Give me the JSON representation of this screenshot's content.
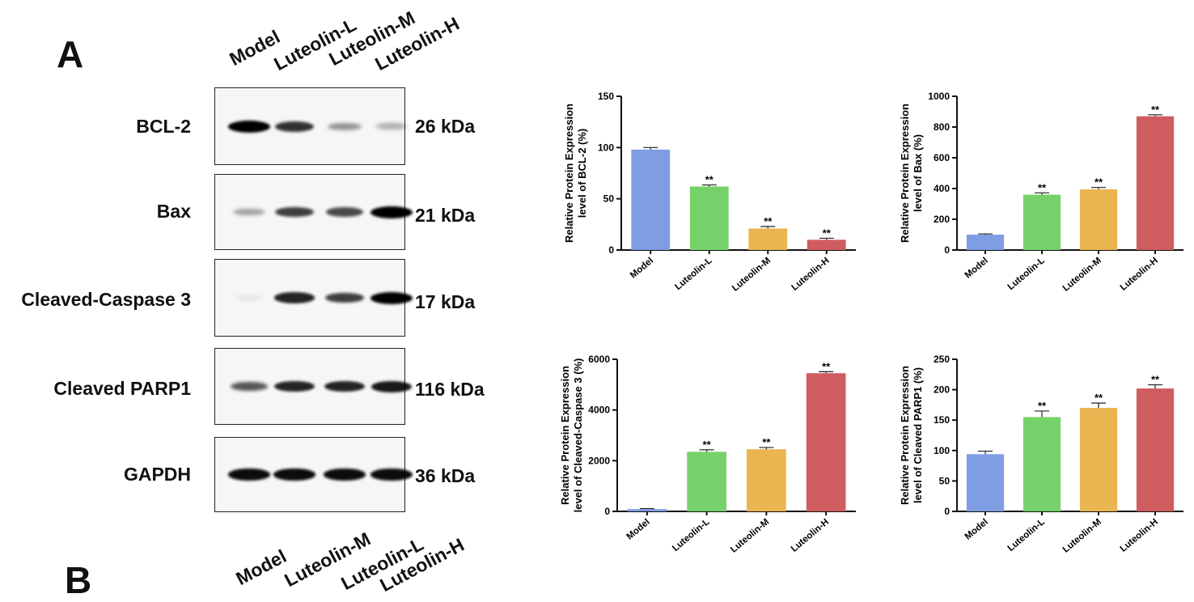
{
  "panels": {
    "a": "A",
    "b": "B"
  },
  "lanes": [
    "Model",
    "Luteolin-L",
    "Luteolin-M",
    "Luteolin-H"
  ],
  "blots": [
    {
      "name": "BCL-2",
      "kda": "26 kDa",
      "intensity": [
        1.0,
        0.8,
        0.4,
        0.3
      ]
    },
    {
      "name": "Bax",
      "kda": "21 kDa",
      "intensity": [
        0.35,
        0.75,
        0.7,
        1.0
      ]
    },
    {
      "name": "Cleaved-Caspase 3",
      "kda": "17 kDa",
      "intensity": [
        0.05,
        0.85,
        0.75,
        1.0
      ]
    },
    {
      "name": "Cleaved PARP1",
      "kda": "116 kDa",
      "intensity": [
        0.65,
        0.85,
        0.85,
        0.9
      ]
    },
    {
      "name": "GAPDH",
      "kda": "36 kDa",
      "intensity": [
        0.95,
        0.95,
        0.95,
        0.95
      ]
    }
  ],
  "colors": {
    "Model": "#7f9de3",
    "Luteolin-L": "#77d16b",
    "Luteolin-M": "#e9b550",
    "Luteolin-H": "#cf5c5f"
  },
  "chart_data": [
    {
      "type": "bar",
      "categories": [
        "Model",
        "Luteolin-L",
        "Luteolin-M",
        "Luteolin-H"
      ],
      "values": [
        98,
        62,
        21,
        10
      ],
      "errors": [
        2,
        1.5,
        2,
        1.5
      ],
      "significance": [
        "",
        "**",
        "**",
        "**"
      ],
      "ylabel": [
        "Relative Protein Expression",
        "level of BCL-2 (%)"
      ],
      "ylim": [
        0,
        150
      ],
      "yticks": [
        0,
        50,
        100,
        150
      ]
    },
    {
      "type": "bar",
      "categories": [
        "Model",
        "Luteolin-L",
        "Luteolin-M",
        "Luteolin-H"
      ],
      "values": [
        100,
        360,
        395,
        870
      ],
      "errors": [
        5,
        12,
        12,
        10
      ],
      "significance": [
        "",
        "**",
        "**",
        "**"
      ],
      "ylabel": [
        "Relative Protein Expression",
        "level of Bax (%)"
      ],
      "ylim": [
        0,
        1000
      ],
      "yticks": [
        0,
        200,
        400,
        600,
        800,
        1000
      ]
    },
    {
      "type": "bar",
      "categories": [
        "Model",
        "Luteolin-L",
        "Luteolin-M",
        "Luteolin-H"
      ],
      "values": [
        90,
        2350,
        2450,
        5450
      ],
      "errors": [
        20,
        80,
        70,
        60
      ],
      "significance": [
        "",
        "**",
        "**",
        "**"
      ],
      "ylabel": [
        "Relative Protein Expression",
        "level of Cleaved-Caspase 3 (%)"
      ],
      "ylim": [
        0,
        6000
      ],
      "yticks": [
        0,
        2000,
        4000,
        6000
      ]
    },
    {
      "type": "bar",
      "categories": [
        "Model",
        "Luteolin-L",
        "Luteolin-M",
        "Luteolin-H"
      ],
      "values": [
        94,
        155,
        170,
        202
      ],
      "errors": [
        5,
        10,
        8,
        6
      ],
      "significance": [
        "",
        "**",
        "**",
        "**"
      ],
      "ylabel": [
        "Relative Protein Expression",
        "level of Cleaved PARP1 (%)"
      ],
      "ylim": [
        0,
        250
      ],
      "yticks": [
        0,
        50,
        100,
        150,
        200,
        250
      ]
    }
  ]
}
